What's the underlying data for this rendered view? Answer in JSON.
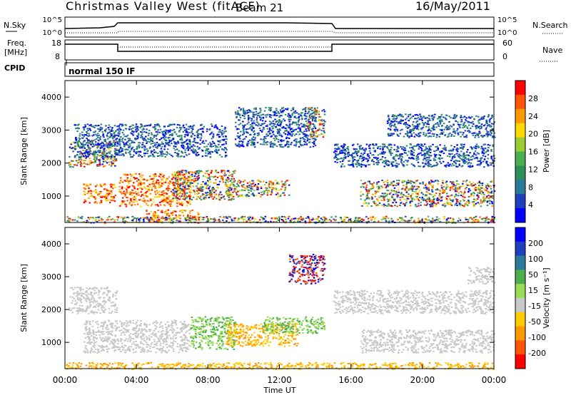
{
  "header": {
    "title": "Christmas Valley West (fitACF)",
    "beam": "Beam 21",
    "date": "16/May/2011"
  },
  "sky_panel": {
    "left_label": "N.Sky",
    "right_label": "N.Search",
    "ticks_left": [
      "10^5",
      "10^0"
    ],
    "ticks_right": [
      "10^5",
      "10^0"
    ]
  },
  "freq_panel": {
    "left_label_1": "Freq.",
    "left_label_2": "[MHz]",
    "right_label": "Nave",
    "ticks_left": [
      "18",
      "8"
    ],
    "ticks_right": [
      "60",
      "0"
    ]
  },
  "cpid": {
    "label": "CPID",
    "mode": "normal 150 IF"
  },
  "colors": {
    "power": [
      "#0000ff",
      "#1f3fbf",
      "#2a7a9a",
      "#2d8f5a",
      "#4cae4c",
      "#9acd32",
      "#ffd700",
      "#ff9900",
      "#ff5500",
      "#ff0000"
    ],
    "velocity": [
      "#0000ff",
      "#1f3fbf",
      "#2a7a9a",
      "#4cae4c",
      "#99dd55",
      "#c8c8c8",
      "#ffcc00",
      "#ff9900",
      "#ff5500",
      "#ff0000"
    ],
    "ground": "#c8c8c8"
  },
  "chart_data": [
    {
      "type": "heatmap",
      "name": "power",
      "ylabel": "Slant Range [km]",
      "ylim": [
        200,
        4500
      ],
      "yticks": [
        "1000",
        "2000",
        "3000",
        "4000"
      ],
      "xlim": [
        0,
        24
      ],
      "colorbar_label": "Power [dB]",
      "colorbar_ticks": [
        "4",
        "8",
        "12",
        "16",
        "20",
        "24",
        "28"
      ],
      "blobs": [
        {
          "t0": 0.2,
          "t1": 2.9,
          "r0": 1900,
          "r1": 2700,
          "type": "mix"
        },
        {
          "t0": 1.0,
          "t1": 2.8,
          "r0": 800,
          "r1": 1400,
          "type": "hot"
        },
        {
          "t0": 3.0,
          "t1": 7.0,
          "r0": 700,
          "r1": 1700,
          "type": "hot"
        },
        {
          "t0": 6.0,
          "t1": 9.5,
          "r0": 900,
          "r1": 1800,
          "type": "mix"
        },
        {
          "t0": 9.0,
          "t1": 12.5,
          "r0": 1000,
          "r1": 1500,
          "type": "mix"
        },
        {
          "t0": 0.5,
          "t1": 9.0,
          "r0": 2200,
          "r1": 3200,
          "type": "cool"
        },
        {
          "t0": 9.5,
          "t1": 14.0,
          "r0": 2500,
          "r1": 3700,
          "type": "cool"
        },
        {
          "t0": 13.5,
          "t1": 14.5,
          "r0": 2800,
          "r1": 3700,
          "type": "mix"
        },
        {
          "t0": 15.0,
          "t1": 24.0,
          "r0": 1900,
          "r1": 2600,
          "type": "cool"
        },
        {
          "t0": 16.5,
          "t1": 24.0,
          "r0": 700,
          "r1": 1500,
          "type": "mix"
        },
        {
          "t0": 18.0,
          "t1": 24.0,
          "r0": 2800,
          "r1": 3500,
          "type": "cool"
        },
        {
          "t0": 4.5,
          "t1": 7.5,
          "r0": 300,
          "r1": 600,
          "type": "hot"
        },
        {
          "t0": 0.0,
          "t1": 24.0,
          "r0": 200,
          "r1": 400,
          "type": "mix"
        }
      ]
    },
    {
      "type": "heatmap",
      "name": "velocity",
      "ylabel": "Slant Range [km]",
      "xlabel": "Time UT",
      "ylim": [
        200,
        4500
      ],
      "yticks": [
        "1000",
        "2000",
        "3000",
        "4000"
      ],
      "xlim": [
        0,
        24
      ],
      "xticks": [
        "00:00",
        "04:00",
        "08:00",
        "12:00",
        "16:00",
        "20:00",
        "00:00"
      ],
      "colorbar_label": "Velocity [m s⁻¹]",
      "colorbar_ticks": [
        "200",
        "100",
        "50",
        "15",
        "-15",
        "-50",
        "-100",
        "-200"
      ],
      "blobs": [
        {
          "t0": 0.2,
          "t1": 2.9,
          "r0": 1900,
          "r1": 2700,
          "type": "ground"
        },
        {
          "t0": 1.0,
          "t1": 7.0,
          "r0": 700,
          "r1": 1700,
          "type": "ground"
        },
        {
          "t0": 7.0,
          "t1": 9.5,
          "r0": 800,
          "r1": 1800,
          "type": "green"
        },
        {
          "t0": 9.0,
          "t1": 13.0,
          "r0": 900,
          "r1": 1600,
          "type": "orange"
        },
        {
          "t0": 11.0,
          "t1": 14.5,
          "r0": 1300,
          "r1": 1800,
          "type": "green"
        },
        {
          "t0": 12.5,
          "t1": 14.5,
          "r0": 2800,
          "r1": 3700,
          "type": "vivid"
        },
        {
          "t0": 15.0,
          "t1": 24.0,
          "r0": 1900,
          "r1": 2600,
          "type": "ground"
        },
        {
          "t0": 16.5,
          "t1": 24.0,
          "r0": 700,
          "r1": 1400,
          "type": "ground"
        },
        {
          "t0": 22.5,
          "t1": 24.0,
          "r0": 2800,
          "r1": 3300,
          "type": "ground"
        },
        {
          "t0": 0.0,
          "t1": 24.0,
          "r0": 200,
          "r1": 400,
          "type": "orange"
        }
      ]
    }
  ]
}
